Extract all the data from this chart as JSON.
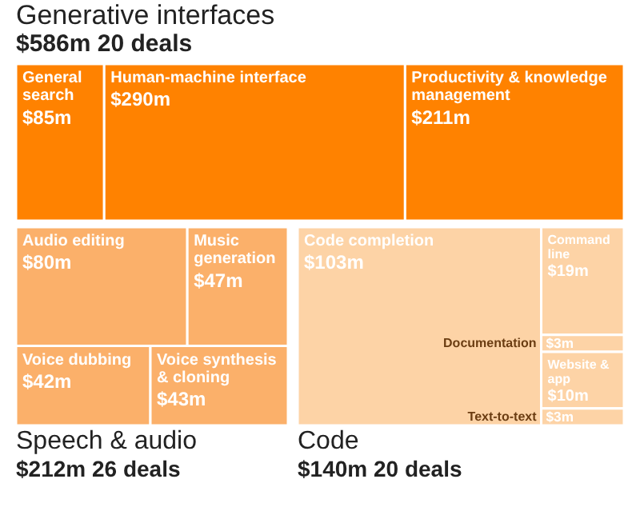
{
  "chart_data": {
    "type": "other",
    "categories": [
      "General search",
      "Human-machine interface",
      "Productivity & knowledge management",
      "Audio editing",
      "Music generation",
      "Voice dubbing",
      "Voice synthesis & cloning",
      "Code completion",
      "Command line",
      "Documentation",
      "Website & app",
      "Text-to-text"
    ],
    "series": [
      {
        "name": "Generative interfaces",
        "color": "#ff8200",
        "values": [
          85,
          290,
          211,
          null,
          null,
          null,
          null,
          null,
          null,
          null,
          null,
          null
        ],
        "value_labels": [
          "$85m",
          "$290m",
          "$211m",
          null,
          null,
          null,
          null,
          null,
          null,
          null,
          null,
          null
        ]
      },
      {
        "name": "Speech & audio",
        "color": "#fbb06a",
        "values": [
          null,
          null,
          null,
          80,
          47,
          42,
          43,
          null,
          null,
          null,
          null,
          null
        ],
        "value_labels": [
          null,
          null,
          null,
          "$80m",
          "$47m",
          "$42m",
          "$43m",
          null,
          null,
          null,
          null,
          null
        ]
      },
      {
        "name": "Code",
        "color": "#fdd3a6",
        "values": [
          null,
          null,
          null,
          null,
          null,
          null,
          null,
          103,
          19,
          3,
          10,
          3
        ],
        "value_labels": [
          null,
          null,
          null,
          null,
          null,
          null,
          null,
          "$103m",
          "$19m",
          "$3m",
          "$10m",
          "$3m"
        ]
      }
    ],
    "annotations": [
      "$586m 20 deals",
      "$212m 26 deals",
      "$140m 20 deals"
    ]
  }
}
